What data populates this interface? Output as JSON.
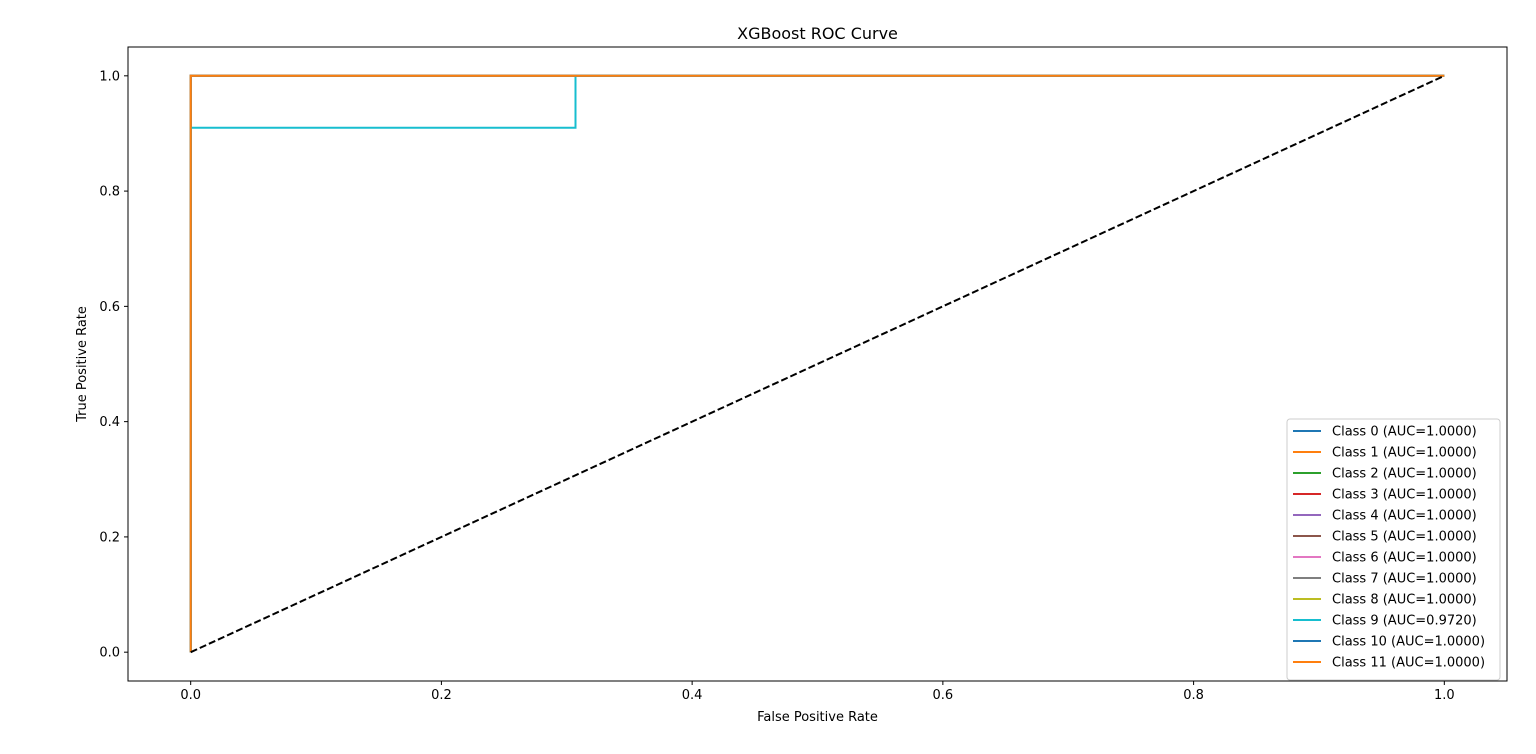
{
  "chart_data": {
    "type": "line",
    "title": "XGBoost ROC Curve",
    "xlabel": "False Positive Rate",
    "ylabel": "True Positive Rate",
    "xlim": [
      -0.05,
      1.05
    ],
    "ylim": [
      -0.05,
      1.05
    ],
    "xticks": [
      0.0,
      0.2,
      0.4,
      0.6,
      0.8,
      1.0
    ],
    "yticks": [
      0.0,
      0.2,
      0.4,
      0.6,
      0.8,
      1.0
    ],
    "xtick_labels": [
      "0.0",
      "0.2",
      "0.4",
      "0.6",
      "0.8",
      "1.0"
    ],
    "ytick_labels": [
      "0.0",
      "0.2",
      "0.4",
      "0.6",
      "0.8",
      "1.0"
    ],
    "grid": false,
    "legend_position": "lower right",
    "series": [
      {
        "name": "Class 0 (AUC=1.0000)",
        "color": "#1f77b4",
        "x": [
          0,
          0,
          1
        ],
        "y": [
          0,
          1,
          1
        ]
      },
      {
        "name": "Class 1 (AUC=1.0000)",
        "color": "#ff7f0e",
        "x": [
          0,
          0,
          1
        ],
        "y": [
          0,
          1,
          1
        ]
      },
      {
        "name": "Class 2 (AUC=1.0000)",
        "color": "#2ca02c",
        "x": [
          0,
          0,
          1
        ],
        "y": [
          0,
          1,
          1
        ]
      },
      {
        "name": "Class 3 (AUC=1.0000)",
        "color": "#d62728",
        "x": [
          0,
          0,
          1
        ],
        "y": [
          0,
          1,
          1
        ]
      },
      {
        "name": "Class 4 (AUC=1.0000)",
        "color": "#9467bd",
        "x": [
          0,
          0,
          1
        ],
        "y": [
          0,
          1,
          1
        ]
      },
      {
        "name": "Class 5 (AUC=1.0000)",
        "color": "#8c564b",
        "x": [
          0,
          0,
          1
        ],
        "y": [
          0,
          1,
          1
        ]
      },
      {
        "name": "Class 6 (AUC=1.0000)",
        "color": "#e377c2",
        "x": [
          0,
          0,
          1
        ],
        "y": [
          0,
          1,
          1
        ]
      },
      {
        "name": "Class 7 (AUC=1.0000)",
        "color": "#7f7f7f",
        "x": [
          0,
          0,
          1
        ],
        "y": [
          0,
          1,
          1
        ]
      },
      {
        "name": "Class 8 (AUC=1.0000)",
        "color": "#bcbd22",
        "x": [
          0,
          0,
          1
        ],
        "y": [
          0,
          1,
          1
        ]
      },
      {
        "name": "Class 9 (AUC=0.9720)",
        "color": "#17becf",
        "x": [
          0,
          0,
          0.307,
          0.307,
          1
        ],
        "y": [
          0,
          0.91,
          0.91,
          1,
          1
        ]
      },
      {
        "name": "Class 10 (AUC=1.0000)",
        "color": "#1f77b4",
        "x": [
          0,
          0,
          1
        ],
        "y": [
          0,
          1,
          1
        ]
      },
      {
        "name": "Class 11 (AUC=1.0000)",
        "color": "#ff7f0e",
        "x": [
          0,
          0,
          1
        ],
        "y": [
          0,
          1,
          1
        ]
      }
    ],
    "reference_line": {
      "x": [
        0,
        1
      ],
      "y": [
        0,
        1
      ],
      "color": "#000000",
      "style": "dashed"
    }
  }
}
